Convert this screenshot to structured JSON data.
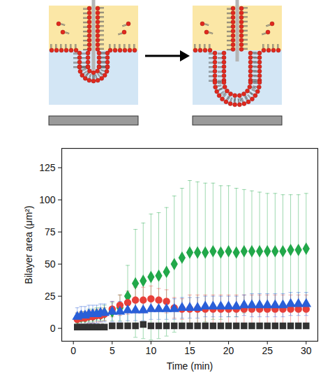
{
  "chart_data": {
    "type": "scatter",
    "x_label": "Time (min)",
    "y_label": "Bilayer area (μm²)",
    "x": [
      0.5,
      1,
      1.5,
      2,
      2.5,
      3,
      3.5,
      4,
      5,
      6,
      7,
      8,
      9,
      10,
      11,
      12,
      13,
      14,
      15,
      16,
      17,
      18,
      19,
      20,
      21,
      22,
      23,
      24,
      25,
      26,
      27,
      28,
      29,
      30
    ],
    "xlim": [
      -1.5,
      31.5
    ],
    "xticks": [
      0,
      5,
      10,
      15,
      20,
      25,
      30
    ],
    "ylim": [
      -10,
      140
    ],
    "yticks": [
      0,
      25,
      50,
      75,
      100,
      125
    ],
    "grid": false,
    "series": [
      {
        "color": "#22a84a",
        "marker": "diamond",
        "values": [
          8,
          9,
          9,
          10,
          10,
          11,
          11,
          12,
          13,
          16,
          25,
          35,
          37,
          40,
          41,
          44,
          50,
          55,
          59,
          59,
          59,
          60,
          59,
          60,
          59,
          60,
          60,
          60,
          60,
          60,
          60,
          61,
          61,
          62
        ],
        "errors": [
          4,
          4,
          4,
          5,
          5,
          5,
          5,
          6,
          7,
          10,
          24,
          42,
          45,
          49,
          49,
          50,
          53,
          54,
          56,
          55,
          54,
          53,
          52,
          51,
          50,
          48,
          47,
          46,
          45,
          45,
          44,
          43,
          43,
          43
        ]
      },
      {
        "color": "#e8403a",
        "marker": "circle",
        "values": [
          7,
          8,
          8,
          9,
          9,
          10,
          10,
          11,
          15,
          18,
          20,
          22,
          22,
          23,
          22,
          21,
          16,
          15,
          15,
          15,
          15,
          15,
          15,
          15,
          15,
          15,
          15,
          15,
          15,
          15,
          15,
          15,
          15,
          15
        ],
        "errors": [
          5,
          5,
          5,
          5,
          5,
          5,
          5,
          5,
          6,
          8,
          9,
          10,
          10,
          10,
          9,
          9,
          8,
          8,
          11,
          11,
          11,
          11,
          11,
          11,
          11,
          11,
          11,
          11,
          11,
          11,
          11,
          11,
          11,
          11
        ]
      },
      {
        "color": "#2a5fd8",
        "marker": "triangle",
        "values": [
          9,
          10,
          10,
          11,
          11,
          11,
          12,
          12,
          13,
          13,
          14,
          14,
          14,
          15,
          15,
          15,
          15,
          16,
          16,
          16,
          17,
          17,
          17,
          17,
          17,
          18,
          18,
          18,
          18,
          18,
          18,
          19,
          19,
          19
        ],
        "errors": [
          7,
          7,
          7,
          7,
          7,
          7,
          7,
          7,
          8,
          8,
          8,
          8,
          8,
          8,
          8,
          8,
          8,
          8,
          8,
          8,
          8,
          8,
          8,
          8,
          8,
          8,
          9,
          9,
          9,
          9,
          9,
          9,
          9,
          9
        ]
      },
      {
        "color": "#333333",
        "marker": "square",
        "values": [
          1,
          1,
          1,
          1,
          1,
          1,
          1,
          1,
          2,
          2,
          2,
          2,
          3,
          2,
          2,
          2,
          2,
          2,
          2,
          2,
          2,
          2,
          2,
          2,
          2,
          2,
          2,
          2,
          2,
          2,
          2,
          2,
          2,
          2
        ],
        "errors": [
          1,
          1,
          1,
          1,
          1,
          1,
          1,
          1,
          1,
          1,
          1,
          1,
          1,
          1,
          1,
          1,
          1,
          1,
          1,
          1,
          1,
          1,
          1,
          1,
          1,
          1,
          1,
          1,
          1,
          1,
          1,
          1,
          1,
          1
        ]
      }
    ]
  }
}
